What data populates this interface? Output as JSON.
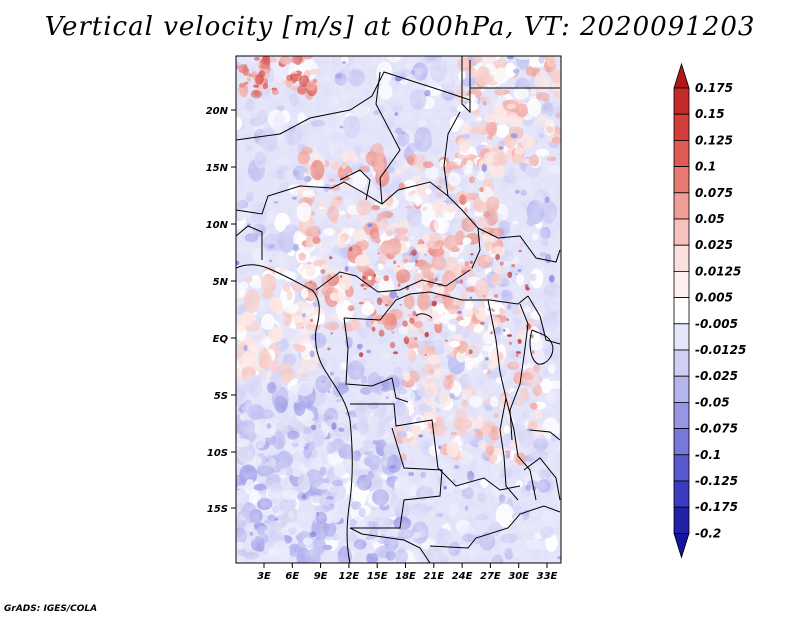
{
  "title": "Vertical velocity [m/s] at 600hPa, VT: 2020091203",
  "credit": "GrADS: IGES/COLA",
  "map": {
    "variable": "Vertical velocity",
    "units": "m/s",
    "level": "600hPa",
    "valid_time": "2020091203",
    "lat_labels": [
      "20N",
      "15N",
      "10N",
      "5N",
      "EQ",
      "5S",
      "10S",
      "15S"
    ],
    "lon_labels": [
      "3E",
      "6E",
      "9E",
      "12E",
      "15E",
      "18E",
      "21E",
      "24E",
      "27E",
      "30E",
      "33E"
    ]
  },
  "colorbar": {
    "levels": [
      "0.175",
      "0.15",
      "0.125",
      "0.1",
      "0.075",
      "0.05",
      "0.025",
      "0.0125",
      "0.005",
      "-0.005",
      "-0.0125",
      "-0.025",
      "-0.05",
      "-0.075",
      "-0.1",
      "-0.125",
      "-0.175",
      "-0.2"
    ],
    "colors": [
      "#b01818",
      "#c42a28",
      "#d43d3a",
      "#e05a55",
      "#e77b74",
      "#ef9e98",
      "#f6c2bd",
      "#fbe1dd",
      "#fdf0ee",
      "#ffffff",
      "#e6e6fb",
      "#cfcff5",
      "#b4b4ef",
      "#9696e6",
      "#7878dc",
      "#5a5ad0",
      "#3c3cc0",
      "#2222a8",
      "#1414a0"
    ]
  }
}
